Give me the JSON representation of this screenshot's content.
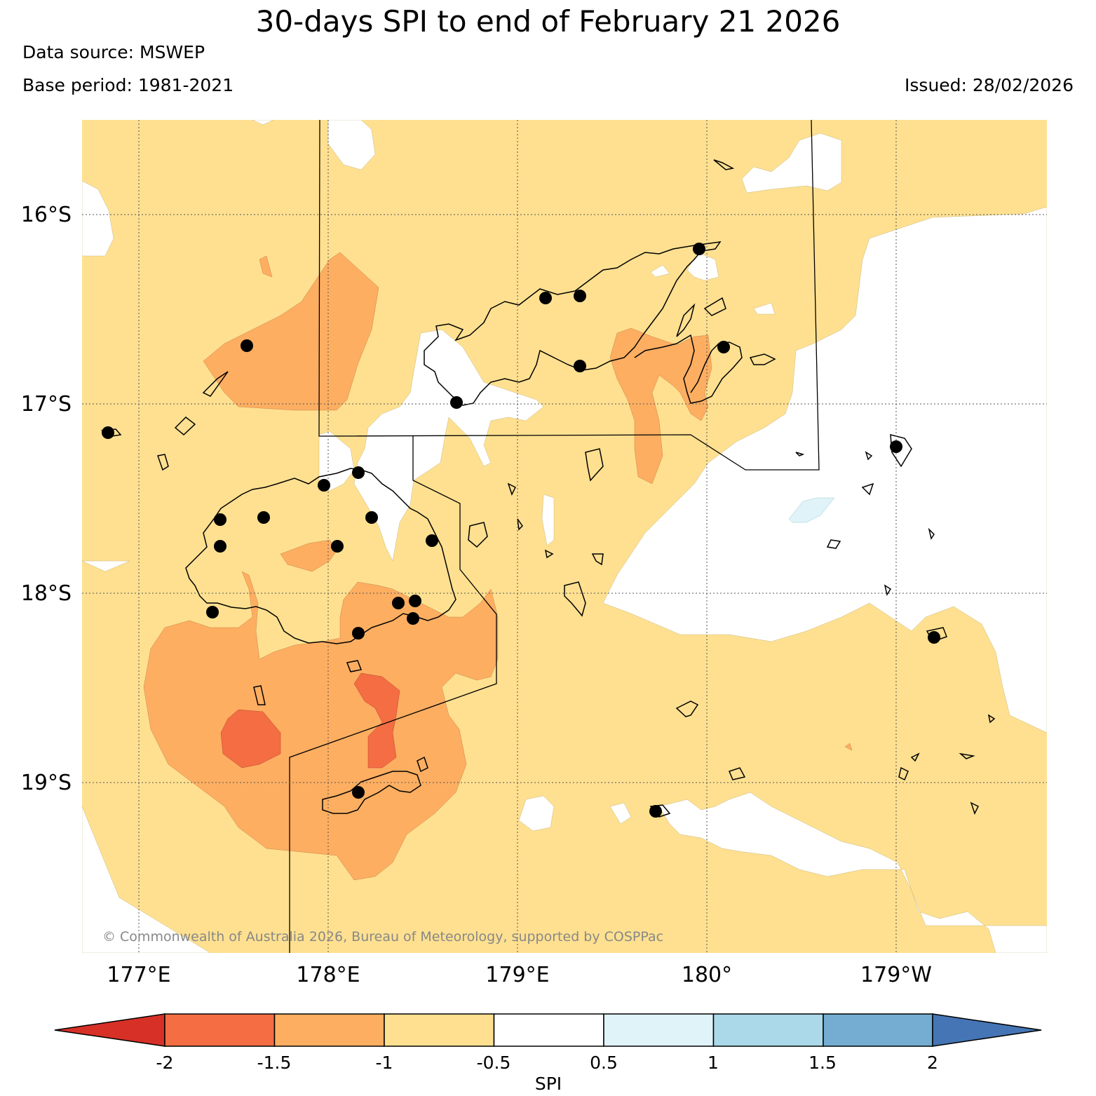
{
  "title": "30-days SPI to end of February 21 2026",
  "data_source": "Data source: MSWEP",
  "base_period": "Base period: 1981-2021",
  "issued": "Issued: 28/02/2026",
  "copyright": "© Commonwealth of Australia 2026, Bureau of Meteorology, supported by COSPPac",
  "axes": {
    "lat_labels": [
      "16°S",
      "17°S",
      "18°S",
      "19°S"
    ],
    "lon_labels": [
      "177°E",
      "178°E",
      "179°E",
      "180°",
      "179°W"
    ]
  },
  "colorbar": {
    "label": "SPI",
    "ticks": [
      "-2",
      "-1.5",
      "-1",
      "-0.5",
      "0.5",
      "1",
      "1.5",
      "2"
    ],
    "colors": {
      "below_-2": "#d73027",
      "-2_to_-1.5": "#f46d43",
      "-1.5_to_-1": "#fdae61",
      "-1_to_-0.5": "#fee090",
      "-0.5_to_0.5": "#ffffff",
      "0.5_to_1": "#e0f3f8",
      "1_to_1.5": "#abd9e9",
      "1.5_to_2": "#74add1",
      "above_2": "#4575b4"
    }
  }
}
